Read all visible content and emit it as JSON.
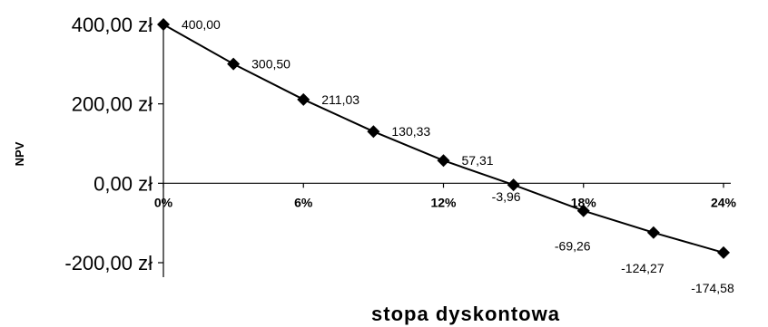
{
  "chart_data": {
    "type": "line",
    "xlabel": "stopa dyskontowa",
    "ylabel": "NPV",
    "x": [
      0,
      3,
      6,
      9,
      12,
      15,
      18,
      21,
      24
    ],
    "values": [
      400.0,
      300.5,
      211.03,
      130.33,
      57.31,
      -3.96,
      -69.26,
      -124.27,
      -174.58
    ],
    "data_labels": [
      "400,00",
      "300,50",
      "211,03",
      "130,33",
      "57,31",
      "-3,96",
      "-69,26",
      "-124,27",
      "-174,58"
    ],
    "ylim": [
      -200,
      400
    ],
    "xlim": [
      0,
      24
    ],
    "y_ticks": [
      400,
      200,
      0,
      -200
    ],
    "y_tick_labels": [
      "400,00 zł",
      "200,00 zł",
      "0,00 zł",
      "-200,00 zł"
    ],
    "x_ticks": [
      0,
      6,
      12,
      18,
      24
    ],
    "x_tick_labels": [
      "0%",
      "6%",
      "12%",
      "18%",
      "24%"
    ],
    "marker": "diamond",
    "grid": false,
    "line_color": "#000000"
  }
}
